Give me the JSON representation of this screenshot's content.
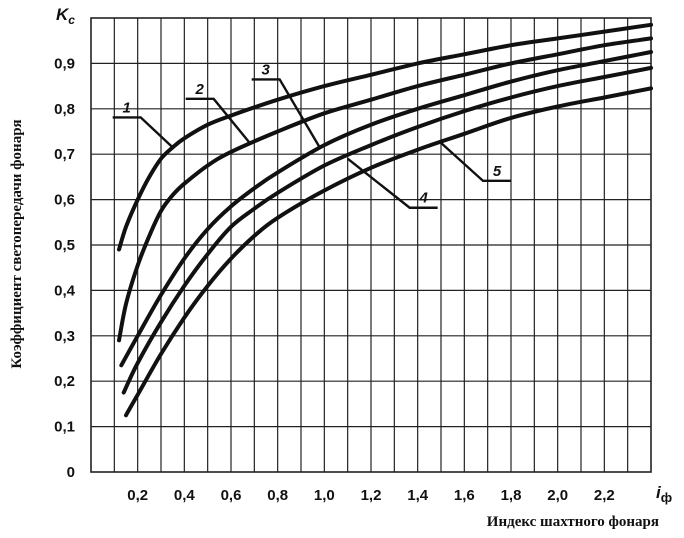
{
  "chart_data": {
    "type": "line",
    "title": "",
    "xlabel": "Индекс шахтного фонаря",
    "ylabel": "Коэффициент светопередачи фонаря",
    "x_symbol": "i",
    "x_symbol_sub": "ф",
    "y_symbol": "K",
    "y_symbol_sub": "c",
    "xlim": [
      0,
      2.4
    ],
    "ylim": [
      0,
      1.0
    ],
    "x_ticks": [
      {
        "value": 0.2,
        "label": "0,2"
      },
      {
        "value": 0.4,
        "label": "0,4"
      },
      {
        "value": 0.6,
        "label": "0,6"
      },
      {
        "value": 0.8,
        "label": "0,8"
      },
      {
        "value": 1.0,
        "label": "1,0"
      },
      {
        "value": 1.2,
        "label": "1,2"
      },
      {
        "value": 1.4,
        "label": "1,4"
      },
      {
        "value": 1.6,
        "label": "1,6"
      },
      {
        "value": 1.8,
        "label": "1,8"
      },
      {
        "value": 2.0,
        "label": "2,0"
      },
      {
        "value": 2.2,
        "label": "2,2"
      }
    ],
    "y_ticks": [
      {
        "value": 0,
        "label": "0"
      },
      {
        "value": 0.1,
        "label": "0,1"
      },
      {
        "value": 0.2,
        "label": "0,2"
      },
      {
        "value": 0.3,
        "label": "0,3"
      },
      {
        "value": 0.4,
        "label": "0,4"
      },
      {
        "value": 0.5,
        "label": "0,5"
      },
      {
        "value": 0.6,
        "label": "0,6"
      },
      {
        "value": 0.7,
        "label": "0,7"
      },
      {
        "value": 0.8,
        "label": "0,8"
      },
      {
        "value": 0.9,
        "label": "0,9"
      }
    ],
    "grid": true,
    "series": [
      {
        "name": "1",
        "x": [
          0.12,
          0.15,
          0.2,
          0.25,
          0.3,
          0.35,
          0.4,
          0.5,
          0.6,
          0.8,
          1.0,
          1.2,
          1.4,
          1.6,
          1.8,
          2.0,
          2.2,
          2.4
        ],
        "y": [
          0.49,
          0.54,
          0.6,
          0.65,
          0.69,
          0.715,
          0.735,
          0.765,
          0.785,
          0.82,
          0.85,
          0.875,
          0.9,
          0.92,
          0.94,
          0.955,
          0.97,
          0.985
        ]
      },
      {
        "name": "2",
        "x": [
          0.12,
          0.15,
          0.2,
          0.25,
          0.3,
          0.35,
          0.4,
          0.5,
          0.6,
          0.8,
          1.0,
          1.2,
          1.4,
          1.6,
          1.8,
          2.0,
          2.2,
          2.4
        ],
        "y": [
          0.29,
          0.37,
          0.455,
          0.52,
          0.575,
          0.61,
          0.635,
          0.675,
          0.705,
          0.75,
          0.79,
          0.82,
          0.85,
          0.875,
          0.9,
          0.92,
          0.94,
          0.955
        ]
      },
      {
        "name": "3",
        "x": [
          0.13,
          0.2,
          0.3,
          0.4,
          0.5,
          0.6,
          0.7,
          0.8,
          1.0,
          1.2,
          1.4,
          1.6,
          1.8,
          2.0,
          2.2,
          2.4
        ],
        "y": [
          0.235,
          0.3,
          0.39,
          0.47,
          0.535,
          0.585,
          0.625,
          0.66,
          0.72,
          0.765,
          0.8,
          0.83,
          0.86,
          0.885,
          0.905,
          0.925
        ]
      },
      {
        "name": "4",
        "x": [
          0.14,
          0.2,
          0.3,
          0.4,
          0.5,
          0.6,
          0.7,
          0.8,
          1.0,
          1.2,
          1.4,
          1.6,
          1.8,
          2.0,
          2.2,
          2.4
        ],
        "y": [
          0.175,
          0.24,
          0.33,
          0.41,
          0.48,
          0.54,
          0.58,
          0.615,
          0.675,
          0.72,
          0.76,
          0.795,
          0.825,
          0.85,
          0.87,
          0.89
        ]
      },
      {
        "name": "5",
        "x": [
          0.15,
          0.2,
          0.3,
          0.4,
          0.5,
          0.6,
          0.7,
          0.8,
          1.0,
          1.2,
          1.4,
          1.6,
          1.8,
          2.0,
          2.2,
          2.4
        ],
        "y": [
          0.125,
          0.17,
          0.26,
          0.34,
          0.41,
          0.47,
          0.52,
          0.56,
          0.62,
          0.67,
          0.71,
          0.745,
          0.78,
          0.805,
          0.825,
          0.845
        ]
      }
    ],
    "curve_labels": [
      {
        "series": "1",
        "text": "1",
        "anchor_x": 0.35,
        "anchor_y": 0.715
      },
      {
        "series": "2",
        "text": "2",
        "anchor_x": 0.68,
        "anchor_y": 0.725
      },
      {
        "series": "3",
        "text": "3",
        "anchor_x": 0.98,
        "anchor_y": 0.715
      },
      {
        "series": "4",
        "text": "4",
        "anchor_x": 1.1,
        "anchor_y": 0.69
      },
      {
        "series": "5",
        "text": "5",
        "anchor_x": 1.5,
        "anchor_y": 0.725
      }
    ]
  }
}
